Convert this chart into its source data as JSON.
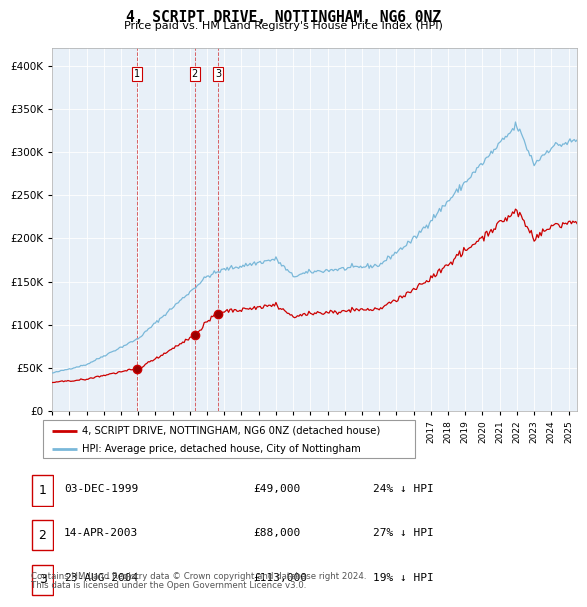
{
  "title": "4, SCRIPT DRIVE, NOTTINGHAM, NG6 0NZ",
  "subtitle": "Price paid vs. HM Land Registry's House Price Index (HPI)",
  "legend_line1": "4, SCRIPT DRIVE, NOTTINGHAM, NG6 0NZ (detached house)",
  "legend_line2": "HPI: Average price, detached house, City of Nottingham",
  "footer1": "Contains HM Land Registry data © Crown copyright and database right 2024.",
  "footer2": "This data is licensed under the Open Government Licence v3.0.",
  "transactions": [
    {
      "num": 1,
      "date": "03-DEC-1999",
      "price": 49000,
      "hpi_diff": "24% ↓ HPI",
      "year": 1999.92
    },
    {
      "num": 2,
      "date": "14-APR-2003",
      "price": 88000,
      "hpi_diff": "27% ↓ HPI",
      "year": 2003.29
    },
    {
      "num": 3,
      "date": "23-AUG-2004",
      "price": 113000,
      "hpi_diff": "19% ↓ HPI",
      "year": 2004.64
    }
  ],
  "hpi_color": "#7ab8d9",
  "price_color": "#cc0000",
  "vline_color": "#cc0000",
  "chart_bg": "#e8f0f8",
  "background_color": "#ffffff",
  "grid_color": "#ffffff",
  "ylim": [
    0,
    420000
  ],
  "xlim_start": 1995.0,
  "xlim_end": 2025.5,
  "yticks": [
    0,
    50000,
    100000,
    150000,
    200000,
    250000,
    300000,
    350000,
    400000
  ]
}
